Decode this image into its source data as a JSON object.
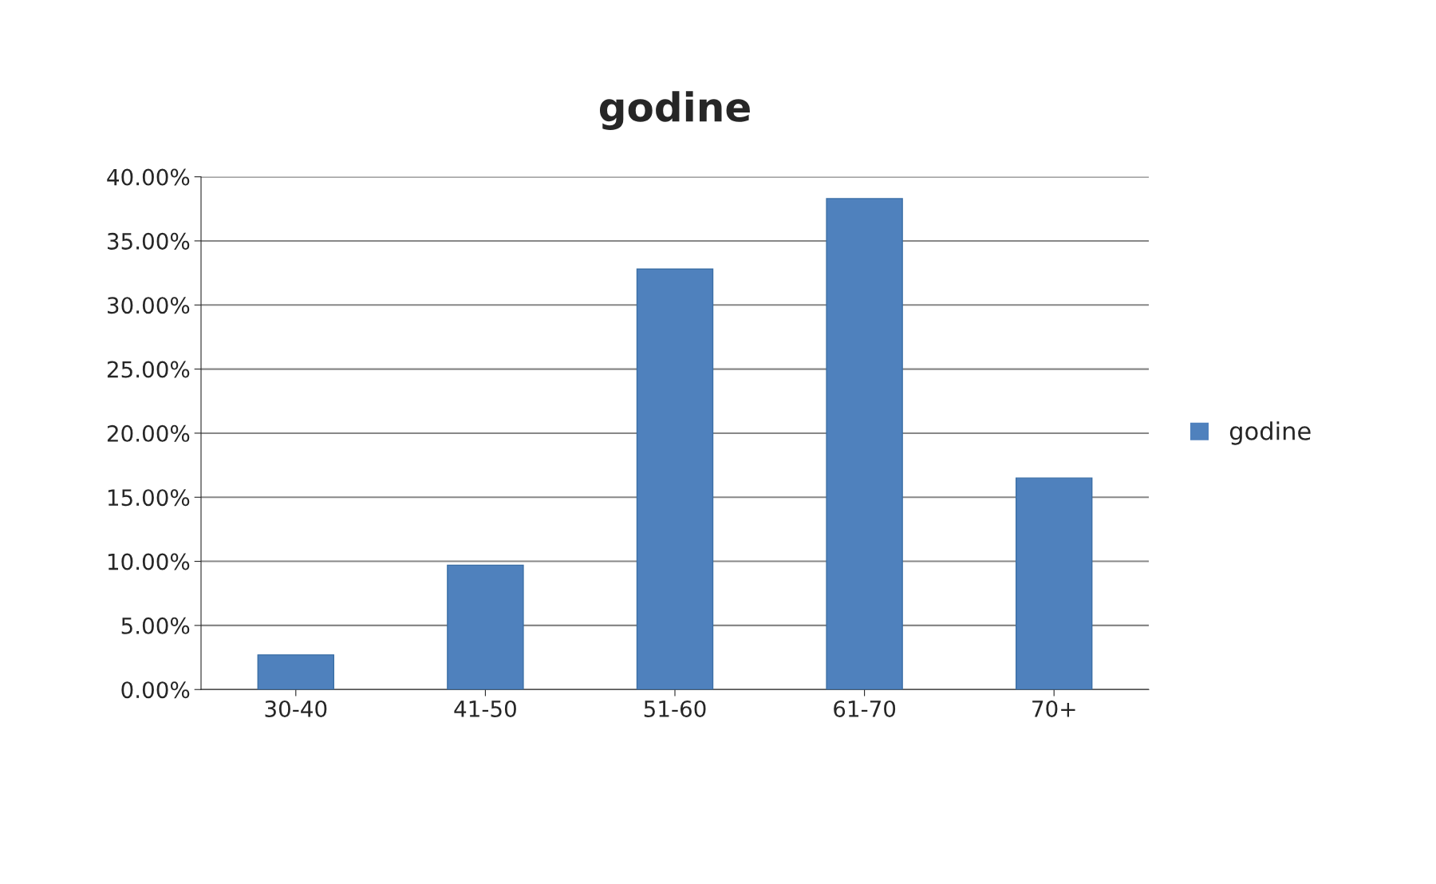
{
  "chart_data": {
    "type": "bar",
    "title": "godine",
    "categories": [
      "30-40",
      "41-50",
      "51-60",
      "61-70",
      "70+"
    ],
    "series": [
      {
        "name": "godine",
        "color": "#4f81bd",
        "values": [
          2.7,
          9.7,
          32.8,
          38.3,
          16.5
        ]
      }
    ],
    "ylim": [
      0,
      40
    ],
    "yticks": [
      {
        "value": 0,
        "label": "0.00%"
      },
      {
        "value": 5,
        "label": "5.00%"
      },
      {
        "value": 10,
        "label": "10.00%"
      },
      {
        "value": 15,
        "label": "15.00%"
      },
      {
        "value": 20,
        "label": "20.00%"
      },
      {
        "value": 25,
        "label": "25.00%"
      },
      {
        "value": 30,
        "label": "30.00%"
      },
      {
        "value": 35,
        "label": "35.00%"
      },
      {
        "value": 40,
        "label": "40.00%"
      }
    ],
    "grid": "y",
    "legend": "right"
  }
}
